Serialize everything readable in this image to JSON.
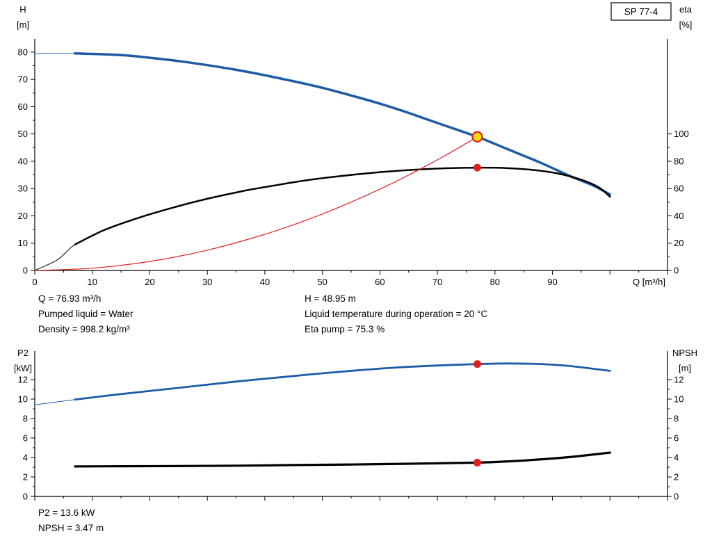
{
  "top_chart": {
    "pump_label": "SP 77-4",
    "x_axis_title": "Q [m³/h]",
    "y_left_title_line1": "H",
    "y_left_title_line2": "[m]",
    "y_right_title_line1": "eta",
    "y_right_title_line2": "[%]"
  },
  "bottom_chart": {
    "y_left_title_line1": "P2",
    "y_left_title_line2": "[kW]",
    "y_right_title_line1": "NPSH",
    "y_right_title_line2": "[m]"
  },
  "operating_point": {
    "flow": "Q = 76.93 m³/h",
    "pumped_liquid": "Pumped liquid = Water",
    "density": "Density = 998.2 kg/m³",
    "head": "H = 48.95 m",
    "liquid_temperature": "Liquid temperature during operation = 20 °C",
    "eta_pump": "Eta pump = 75.3 %",
    "p2": "P2 = 13.6 kW",
    "npsh": "NPSH = 3.47 m"
  },
  "colors": {
    "curve_blue": "#1d5ba6",
    "curve_black": "#000000",
    "curve_red": "#e02020",
    "duty_yellow": "#ffdd00"
  },
  "chart_data": [
    {
      "type": "line",
      "title": "SP 77-4",
      "x_axis": {
        "title": "Q [m³/h]",
        "min": 0,
        "max": 110,
        "major_step": 10,
        "minor_step": 5,
        "tick_extent": 110,
        "tick_labels": [
          "0",
          "10",
          "20",
          "30",
          "40",
          "50",
          "60",
          "70",
          "80",
          "90"
        ]
      },
      "y_left": {
        "title": "H [m]",
        "min": 0,
        "max": 84.8,
        "major_step": 10,
        "minor_step": 5,
        "tick_extent": 80,
        "tick_labels": [
          "0",
          "10",
          "20",
          "30",
          "40",
          "50",
          "60",
          "70",
          "80"
        ]
      },
      "y_right": {
        "title": "eta [%]",
        "min": 0,
        "max": 169.6,
        "major_step": 20,
        "minor_step": 10,
        "tick_extent": 100,
        "to_left_factor": 0.5,
        "tick_labels": [
          "0",
          "20",
          "40",
          "60",
          "80",
          "100"
        ]
      },
      "series": [
        {
          "name": "head-curve",
          "axis": "left",
          "color": "#1d5ba6",
          "width": 3.5,
          "thin_until": 7,
          "points": [
            [
              0,
              79.4
            ],
            [
              7,
              79.5
            ],
            [
              15,
              78.9
            ],
            [
              20,
              77.9
            ],
            [
              25,
              76.7
            ],
            [
              30,
              75.2
            ],
            [
              35,
              73.5
            ],
            [
              40,
              71.5
            ],
            [
              45,
              69.3
            ],
            [
              50,
              66.9
            ],
            [
              55,
              64.1
            ],
            [
              60,
              61.1
            ],
            [
              65,
              57.7
            ],
            [
              70,
              54.0
            ],
            [
              76.93,
              48.95
            ],
            [
              82,
              44.6
            ],
            [
              88,
              39.4
            ],
            [
              93,
              34.6
            ],
            [
              97,
              31.2
            ],
            [
              100,
              27.8
            ]
          ]
        },
        {
          "name": "efficiency-curve",
          "axis": "right",
          "color": "#000000",
          "width": 2.5,
          "thin_until": 7,
          "points": [
            [
              0,
              0
            ],
            [
              4,
              8
            ],
            [
              7,
              19
            ],
            [
              12,
              29.5
            ],
            [
              18,
              38.5
            ],
            [
              24,
              46
            ],
            [
              30,
              52.5
            ],
            [
              36,
              58
            ],
            [
              42,
              62.5
            ],
            [
              48,
              66.5
            ],
            [
              54,
              69.5
            ],
            [
              60,
              72
            ],
            [
              66,
              73.8
            ],
            [
              72,
              74.9
            ],
            [
              76.93,
              75.3
            ],
            [
              82,
              75.0
            ],
            [
              87,
              73.5
            ],
            [
              91,
              71
            ],
            [
              95,
              66.5
            ],
            [
              98,
              61
            ],
            [
              100,
              54
            ]
          ]
        },
        {
          "name": "system-curve",
          "axis": "left",
          "color": "#e02020",
          "width": 1.2,
          "points": [
            [
              0,
              0
            ],
            [
              10,
              0.83
            ],
            [
              20,
              3.31
            ],
            [
              30,
              7.44
            ],
            [
              40,
              13.23
            ],
            [
              48,
              19.05
            ],
            [
              55,
              25.02
            ],
            [
              62,
              31.79
            ],
            [
              68,
              38.24
            ],
            [
              72,
              42.87
            ],
            [
              76.93,
              48.95
            ]
          ]
        }
      ],
      "markers": [
        {
          "name": "duty-point",
          "axis": "left",
          "q": 76.93,
          "value": 48.95,
          "r": 7,
          "fill": "#ffdd00",
          "stroke": "#e02020",
          "stroke_width": 2.2,
          "interactable": true
        },
        {
          "name": "efficiency-point",
          "axis": "right",
          "q": 76.93,
          "value": 75.3,
          "r": 5.5,
          "fill": "#e02020",
          "interactable": false
        }
      ]
    },
    {
      "type": "line",
      "x_axis": {
        "title": "",
        "min": 0,
        "max": 110,
        "major_step": 10,
        "minor_step": 5,
        "tick_extent": 110,
        "tick_labels": []
      },
      "y_left": {
        "title": "P2 [kW]",
        "min": 0,
        "max": 14.93,
        "major_step": 2,
        "minor_step": 1,
        "tick_extent": 12,
        "tick_labels": [
          "0",
          "2",
          "4",
          "6",
          "8",
          "10",
          "12"
        ]
      },
      "y_right": {
        "title": "NPSH [m]",
        "min": 0,
        "max": 14.93,
        "major_step": 2,
        "minor_step": 1,
        "tick_extent": 12,
        "to_left_factor": 1,
        "tick_labels": [
          "0",
          "2",
          "4",
          "6",
          "8",
          "10",
          "12"
        ]
      },
      "series": [
        {
          "name": "p2-curve",
          "axis": "left",
          "color": "#1d5ba6",
          "width": 2.8,
          "thin_until": 7,
          "points": [
            [
              0,
              9.4
            ],
            [
              7,
              9.95
            ],
            [
              14,
              10.45
            ],
            [
              21,
              10.9
            ],
            [
              28,
              11.35
            ],
            [
              35,
              11.8
            ],
            [
              42,
              12.2
            ],
            [
              49,
              12.6
            ],
            [
              56,
              12.95
            ],
            [
              63,
              13.25
            ],
            [
              70,
              13.45
            ],
            [
              76.93,
              13.6
            ],
            [
              82,
              13.66
            ],
            [
              88,
              13.6
            ],
            [
              93,
              13.4
            ],
            [
              100,
              12.9
            ]
          ]
        },
        {
          "name": "npsh-curve",
          "axis": "right",
          "color": "#000000",
          "width": 3.2,
          "points": [
            [
              7,
              3.08
            ],
            [
              15,
              3.1
            ],
            [
              25,
              3.12
            ],
            [
              35,
              3.16
            ],
            [
              45,
              3.22
            ],
            [
              55,
              3.28
            ],
            [
              65,
              3.36
            ],
            [
              76.93,
              3.47
            ],
            [
              83,
              3.62
            ],
            [
              89,
              3.85
            ],
            [
              94,
              4.1
            ],
            [
              100,
              4.5
            ]
          ]
        }
      ],
      "markers": [
        {
          "name": "p2-point",
          "axis": "left",
          "q": 76.93,
          "value": 13.6,
          "r": 5.5,
          "fill": "#e02020",
          "interactable": false
        },
        {
          "name": "npsh-point",
          "axis": "right",
          "q": 76.93,
          "value": 3.47,
          "r": 5.5,
          "fill": "#e02020",
          "interactable": false
        }
      ]
    }
  ]
}
